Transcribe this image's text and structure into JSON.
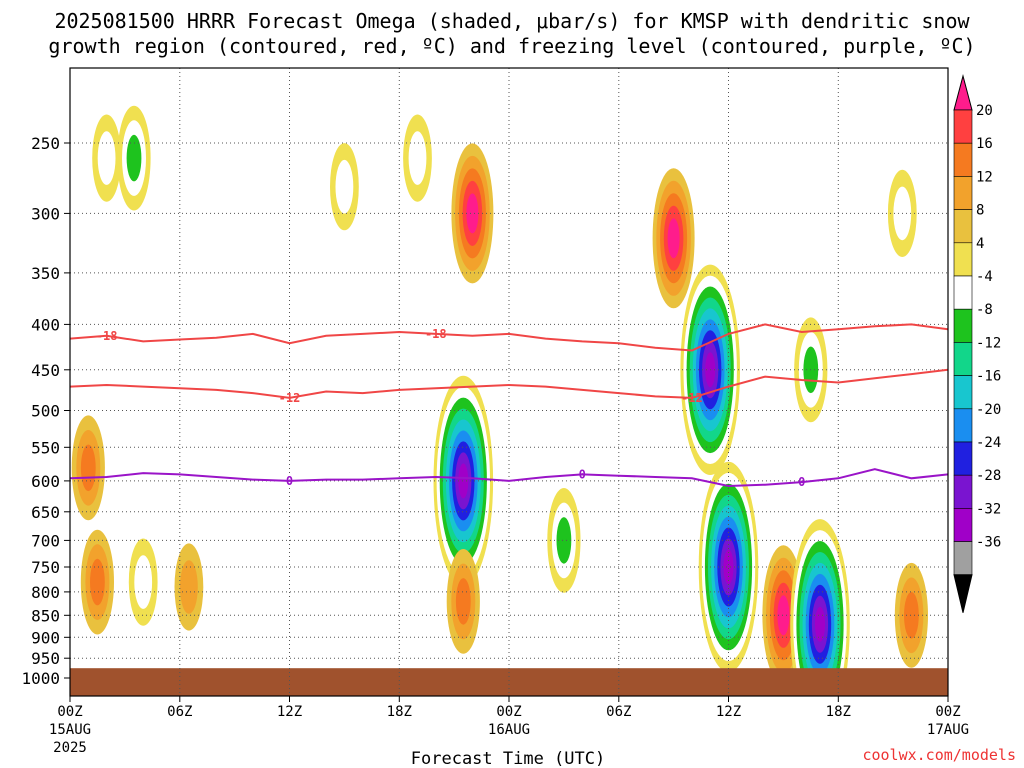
{
  "title": {
    "line1": "2025081500 HRRR Forecast Omega (shaded, μbar/s) for KMSP with dendritic snow",
    "line2": "growth region (contoured, red, ºC) and freezing level (contoured, purple, ºC)"
  },
  "credit": "coolwx.com/models",
  "chart_data": {
    "type": "heatmap",
    "xlabel": "Forecast Time (UTC)",
    "ylabel": "",
    "y_scale": "pressure (reversed, log)",
    "ylim": [
      1000,
      200
    ],
    "xlim": [
      0,
      48
    ],
    "y_ticks": [
      250,
      300,
      350,
      400,
      450,
      500,
      550,
      600,
      650,
      700,
      750,
      800,
      850,
      900,
      950,
      1000
    ],
    "x_ticks": [
      {
        "hour": 0,
        "label": "00Z",
        "sub1": "15AUG",
        "sub2": "2025"
      },
      {
        "hour": 6,
        "label": "06Z",
        "sub1": "",
        "sub2": ""
      },
      {
        "hour": 12,
        "label": "12Z",
        "sub1": "",
        "sub2": ""
      },
      {
        "hour": 18,
        "label": "18Z",
        "sub1": "",
        "sub2": ""
      },
      {
        "hour": 24,
        "label": "00Z",
        "sub1": "16AUG",
        "sub2": ""
      },
      {
        "hour": 30,
        "label": "06Z",
        "sub1": "",
        "sub2": ""
      },
      {
        "hour": 36,
        "label": "12Z",
        "sub1": "",
        "sub2": ""
      },
      {
        "hour": 42,
        "label": "18Z",
        "sub1": "",
        "sub2": ""
      },
      {
        "hour": 48,
        "label": "00Z",
        "sub1": "17AUG",
        "sub2": ""
      }
    ],
    "grid": true,
    "legend": "colorbar right",
    "colorbar": {
      "levels": [
        20,
        16,
        12,
        8,
        4,
        -4,
        -8,
        -12,
        -16,
        -20,
        -24,
        -28,
        -32,
        -36
      ],
      "colors": [
        "#ff1c8c",
        "#ff4040",
        "#f57a20",
        "#f2a22c",
        "#e9c13e",
        "#f0e050",
        "#ffffff",
        "#1ec31e",
        "#12d68a",
        "#18c6cf",
        "#1a8ef0",
        "#2020e0",
        "#7a14d0",
        "#a000c8",
        "#a0a0a0",
        "#000000"
      ]
    },
    "shaded_omega": [
      {
        "x": 1.0,
        "p": 580,
        "v": 12
      },
      {
        "x": 1.5,
        "p": 780,
        "v": 12
      },
      {
        "x": 2.0,
        "p": 260,
        "v": -8
      },
      {
        "x": 3.5,
        "p": 260,
        "v": -12
      },
      {
        "x": 4.0,
        "p": 780,
        "v": -8
      },
      {
        "x": 6.5,
        "p": 790,
        "v": 8
      },
      {
        "x": 15.0,
        "p": 280,
        "v": -8
      },
      {
        "x": 19.0,
        "p": 260,
        "v": -8
      },
      {
        "x": 22.0,
        "p": 300,
        "v": 20
      },
      {
        "x": 21.5,
        "p": 600,
        "v": -36
      },
      {
        "x": 21.5,
        "p": 820,
        "v": 12
      },
      {
        "x": 27.0,
        "p": 700,
        "v": -12
      },
      {
        "x": 33.0,
        "p": 320,
        "v": 20
      },
      {
        "x": 35.0,
        "p": 450,
        "v": -36
      },
      {
        "x": 36.0,
        "p": 750,
        "v": -36
      },
      {
        "x": 39.0,
        "p": 850,
        "v": 20
      },
      {
        "x": 40.5,
        "p": 450,
        "v": -12
      },
      {
        "x": 41.0,
        "p": 870,
        "v": -36
      },
      {
        "x": 45.5,
        "p": 300,
        "v": -8
      },
      {
        "x": 46.0,
        "p": 850,
        "v": 12
      }
    ],
    "contour_dendritic_c": [
      {
        "value": -18,
        "label": "-18",
        "x": [
          0,
          2,
          4,
          6,
          8,
          10,
          12,
          14,
          16,
          18,
          20,
          22,
          24,
          26,
          28,
          30,
          32,
          34,
          36,
          38,
          40,
          42,
          44,
          46,
          48
        ],
        "p": [
          415,
          412,
          418,
          416,
          414,
          410,
          420,
          412,
          410,
          408,
          410,
          412,
          410,
          415,
          418,
          420,
          425,
          428,
          410,
          400,
          408,
          405,
          402,
          400,
          405
        ]
      },
      {
        "value": -12,
        "label": "-12",
        "x": [
          0,
          2,
          4,
          6,
          8,
          10,
          12,
          14,
          16,
          18,
          20,
          22,
          24,
          26,
          28,
          30,
          32,
          34,
          36,
          38,
          40,
          42,
          44,
          46,
          48
        ],
        "p": [
          470,
          468,
          470,
          472,
          474,
          478,
          484,
          476,
          478,
          474,
          472,
          470,
          468,
          470,
          474,
          478,
          482,
          484,
          470,
          458,
          462,
          465,
          460,
          455,
          450
        ]
      }
    ],
    "contour_freezing_c": {
      "value": 0,
      "label": "0",
      "x": [
        0,
        2,
        4,
        6,
        8,
        10,
        12,
        14,
        16,
        18,
        20,
        22,
        24,
        26,
        28,
        30,
        32,
        34,
        36,
        38,
        40,
        42,
        44,
        46,
        48
      ],
      "p": [
        596,
        594,
        588,
        590,
        594,
        598,
        600,
        598,
        598,
        596,
        594,
        596,
        600,
        594,
        590,
        592,
        594,
        596,
        608,
        606,
        602,
        596,
        582,
        596,
        590
      ]
    },
    "terrain_below_hpa": 975
  }
}
